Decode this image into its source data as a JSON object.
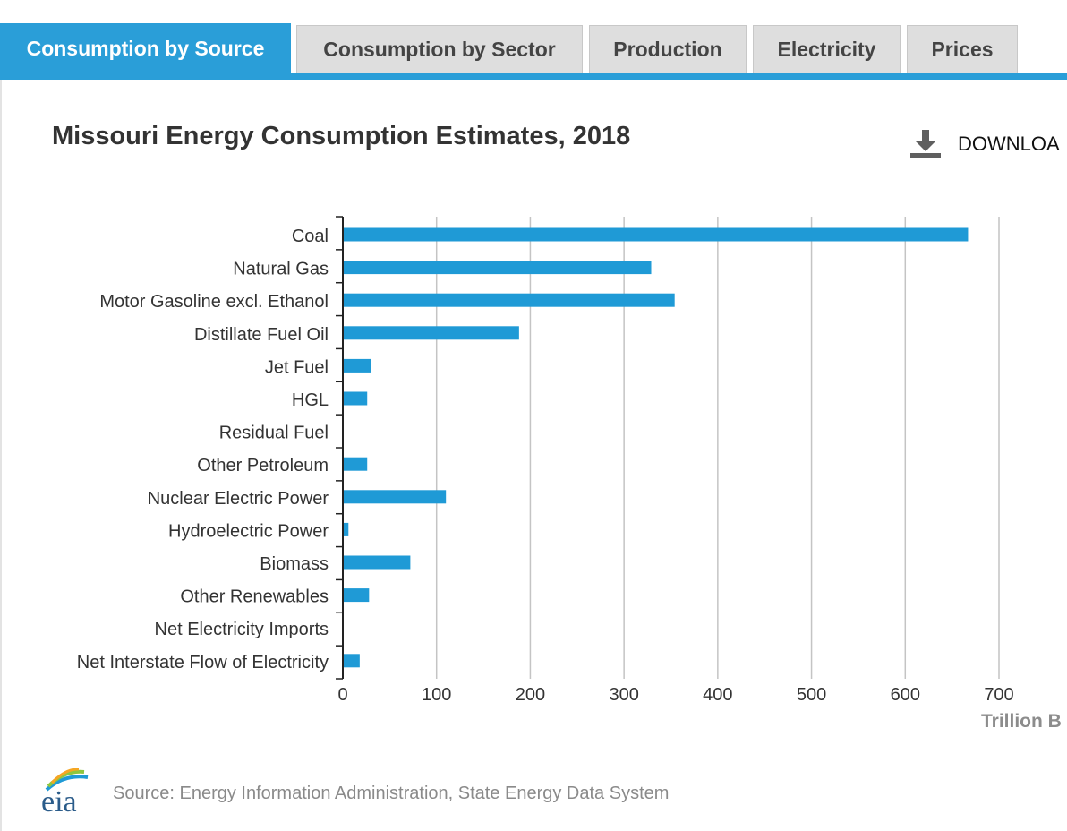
{
  "tabs": [
    {
      "label": "Consumption by Source",
      "active": true
    },
    {
      "label": "Consumption by Sector",
      "active": false
    },
    {
      "label": "Production",
      "active": false
    },
    {
      "label": "Electricity",
      "active": false
    },
    {
      "label": "Prices",
      "active": false
    }
  ],
  "download": {
    "label": "DOWNLOA",
    "icon": "download-icon"
  },
  "footer": {
    "logo_text": "eia",
    "source": "Source: Energy Information Administration, State Energy Data System"
  },
  "colors": {
    "accent": "#2a9ed8",
    "bar": "#1f9ad6",
    "tab_inactive": "#dedede",
    "grid": "#c4c4c4"
  },
  "chart_data": {
    "type": "bar",
    "orientation": "horizontal",
    "title": "Missouri Energy Consumption Estimates, 2018",
    "categories": [
      "Coal",
      "Natural Gas",
      "Motor Gasoline excl. Ethanol",
      "Distillate Fuel Oil",
      "Jet Fuel",
      "HGL",
      "Residual Fuel",
      "Other Petroleum",
      "Nuclear Electric Power",
      "Hydroelectric Power",
      "Biomass",
      "Other Renewables",
      "Net Electricity Imports",
      "Net Interstate Flow of Electricity"
    ],
    "values": [
      667,
      329,
      354,
      188,
      30,
      26,
      0,
      26,
      110,
      6,
      72,
      28,
      0,
      18
    ],
    "xlabel": "Trillion B",
    "xlim": [
      0,
      700
    ],
    "xticks": [
      0,
      100,
      200,
      300,
      400,
      500,
      600,
      700
    ],
    "grid": true,
    "legend": "none"
  }
}
